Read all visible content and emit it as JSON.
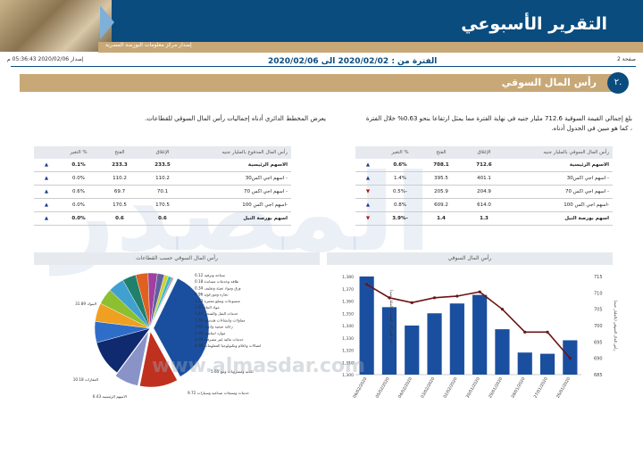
{
  "header": {
    "title": "التقرير الأسبوعي",
    "subtitle": "إصدار مركز معلومات البورصة المصرية"
  },
  "meta": {
    "page": "صفحة 2",
    "issued": "إصدار 2020/02/06 05:36:43 م",
    "period": "الفترة من : 2020/02/02 الى 2020/02/06"
  },
  "section": {
    "number": "٢.",
    "title": "رأس المال السوقي"
  },
  "paragraphs": {
    "right": "بلغ إجمالي القيمة السوقية 712.6 مليار جنيه في نهاية الفترة مما يمثل ارتفاعا بنحو 0.63% خلال الفترة ، كما هو مبين في الجدول أدناه.",
    "left": "يعرض المخطط الدائري أدناه إجماليات رأس المال السوقي للقطاعات."
  },
  "table_right": {
    "headers": [
      "رأس المال السوقي بالمليار جنيه",
      "الإغلاق",
      "الفتح",
      "% التغير",
      ""
    ],
    "rows": [
      {
        "name": "الاسهم الرئيسية",
        "close": "712.6",
        "open": "708.1",
        "change": "0.6%",
        "dir": "up",
        "bold": true
      },
      {
        "name": "- اسهم اجي اكس30",
        "close": "401.1",
        "open": "395.5",
        "change": "1.4%",
        "dir": "up",
        "bold": false
      },
      {
        "name": "- اسهم اجي اكس 70",
        "close": "204.9",
        "open": "205.9",
        "change": "-0.5%",
        "dir": "down",
        "bold": false
      },
      {
        "name": "-اسهم اجي اكس 100",
        "close": "614.0",
        "open": "609.2",
        "change": "0.8%",
        "dir": "up",
        "bold": false
      },
      {
        "name": "اسهم بورصة النيل",
        "close": "1.3",
        "open": "1.4",
        "change": "-3.9%",
        "dir": "down",
        "bold": true
      }
    ]
  },
  "table_left": {
    "headers": [
      "رأس المال المدفوع بالمليار جنيه",
      "الإغلاق",
      "الفتح",
      "% التغير",
      ""
    ],
    "rows": [
      {
        "name": "الاسهم الرئيسية",
        "close": "233.5",
        "open": "233.3",
        "change": "0.1%",
        "dir": "up",
        "bold": true
      },
      {
        "name": "- اسهم اجي اكس30",
        "close": "110.2",
        "open": "110.2",
        "change": "0.0%",
        "dir": "up",
        "bold": false
      },
      {
        "name": "- اسهم اجي اكس 70",
        "close": "70.1",
        "open": "69.7",
        "change": "0.6%",
        "dir": "up",
        "bold": false
      },
      {
        "name": "-اسهم اجي اكس 100",
        "close": "170.5",
        "open": "170.5",
        "change": "0.0%",
        "dir": "up",
        "bold": false
      },
      {
        "name": "اسهم بورصة النيل",
        "close": "0.6",
        "open": "0.6",
        "change": "0.0%",
        "dir": "up",
        "bold": true
      }
    ]
  },
  "arrows": {
    "up": "▲",
    "down": "▼"
  },
  "colors": {
    "navy": "#0a4c7e",
    "gold": "#c8a877",
    "bar": "#1a4fa0",
    "line": "#6b1414"
  },
  "chart_data": [
    {
      "type": "bar",
      "title": "رأس المال السوقي",
      "categories": [
        "06/02/2020",
        "05/02/2020",
        "04/02/2020",
        "03/02/2020",
        "02/02/2020",
        "30/01/2020",
        "29/01/2020",
        "28/01/2020",
        "27/01/2020",
        "26/01/2020"
      ],
      "series": [
        {
          "name": "عدد الشركات المقيدة (بالمليار جنيه)",
          "type": "bar",
          "axis": "left",
          "values": [
            1380,
            1355,
            1340,
            1350,
            1358,
            1365,
            1337,
            1318,
            1317,
            1328
          ]
        },
        {
          "name": "رأس المال السوقي (بالمليار جنيه)",
          "type": "line",
          "axis": "right",
          "values": [
            712.6,
            708.5,
            707,
            708.5,
            709,
            710.3,
            705,
            698,
            698,
            690
          ]
        }
      ],
      "ylim_left": [
        1300,
        1380
      ],
      "yticks_left": [
        "1,300",
        "1,310",
        "1,320",
        "1,330",
        "1,340",
        "1,350",
        "1,360",
        "1,370",
        "1,380"
      ],
      "ylim_right": [
        685,
        715
      ],
      "yticks_right": [
        "685",
        "690",
        "695",
        "700",
        "705",
        "710",
        "715"
      ],
      "ylabel_left": "عدد الشركات المقيدة (بالمليار جنيه)",
      "ylabel_right": "رأس المال السوقي (بالمليار جنيه)"
    },
    {
      "type": "pie",
      "title": "رأس المال السوقي حسب القطاعات",
      "slices": [
        {
          "label": "البنوك",
          "value": 31.89,
          "color": "#1a4fa0"
        },
        {
          "label": "العقارات",
          "value": 10.18,
          "color": "#c0301e"
        },
        {
          "label": "الاسهم الرئيسية",
          "value": 6.43,
          "color": "#8a93c8"
        },
        {
          "label": "خدمات ومنتجات صناعية وسيارات",
          "value": 9.72,
          "color": "#0f2a6e"
        },
        {
          "label": "اغذية ومشروبات وتبغ",
          "value": 5.65,
          "color": "#2f6ec8"
        },
        {
          "label": "اتصالات واعلام وتكنولوجيا المعلومات",
          "value": 4.98,
          "color": "#f0a020"
        },
        {
          "label": "خدمات مالية غير مصرفية",
          "value": 4.3,
          "color": "#8cc030"
        },
        {
          "label": "موارد اساسية",
          "value": 4.34,
          "color": "#40a0d0"
        },
        {
          "label": "رعاية صحية وادوية",
          "value": 3.63,
          "color": "#20806c"
        },
        {
          "label": "مقاولات وانشاءات هندسية",
          "value": 3.3,
          "color": "#e06020"
        },
        {
          "label": "خدمات النقل والشحن",
          "value": 2.48,
          "color": "#a040a0"
        },
        {
          "label": "مواد البناء",
          "value": 1.87,
          "color": "#6060a0"
        },
        {
          "label": "منسوجات وسلع معمرة",
          "value": 1.13,
          "color": "#d0d030"
        },
        {
          "label": "تجارة وموزعون",
          "value": 0.96,
          "color": "#3cbcbc"
        },
        {
          "label": "ورق ومواد تعبئة وتغليف",
          "value": 0.34,
          "color": "#8060c0"
        },
        {
          "label": "طاقة وخدمات مساندة",
          "value": 0.18,
          "color": "#c08040"
        },
        {
          "label": "سياحة وترفيه",
          "value": 0.12,
          "color": "#909090"
        }
      ]
    }
  ],
  "watermark": {
    "text": "المصدر",
    "url": "www.almasdar.com"
  }
}
